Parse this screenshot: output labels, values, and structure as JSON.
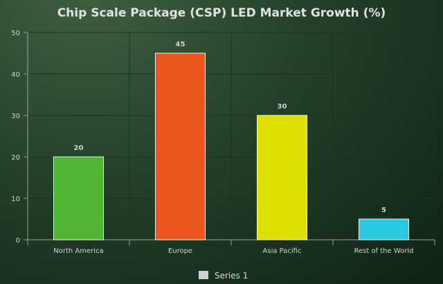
{
  "chart_data": {
    "type": "bar",
    "title": "Chip Scale Package (CSP) LED Market Growth (%)",
    "xlabel": "",
    "ylabel": "",
    "categories": [
      "North America",
      "Europe",
      "Asia Pacific",
      "Rest of the World"
    ],
    "series": [
      {
        "name": "Series 1",
        "values": [
          20,
          45,
          30,
          5
        ]
      }
    ],
    "bar_colors": [
      "#4fb534",
      "#ea561b",
      "#dfdf00",
      "#28c8e2"
    ],
    "legend_swatch_color": "#d0d0d0",
    "ylim": [
      0,
      50
    ],
    "yticks": [
      0,
      10,
      20,
      30,
      40,
      50
    ],
    "grid": true,
    "legend_position": "bottom-center",
    "data_labels": true
  }
}
